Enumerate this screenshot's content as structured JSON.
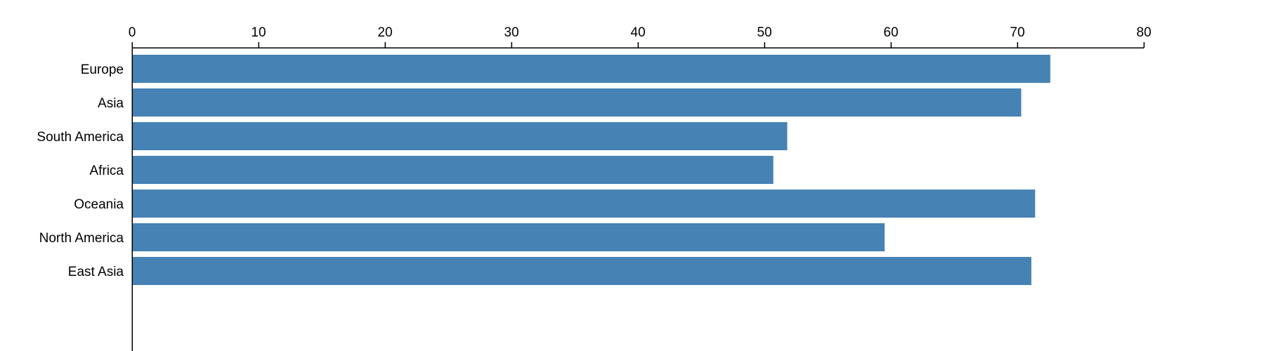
{
  "chart_data": {
    "type": "bar",
    "orientation": "horizontal",
    "categories": [
      "Europe",
      "Asia",
      "South America",
      "Africa",
      "Oceania",
      "North America",
      "East Asia"
    ],
    "values": [
      72.6,
      70.3,
      51.8,
      50.7,
      71.4,
      59.5,
      71.1
    ],
    "xlim": [
      0,
      80
    ],
    "xticks": [
      0,
      10,
      20,
      30,
      40,
      50,
      60,
      70,
      80
    ],
    "x_axis_position": "top",
    "grid": false,
    "legend": "none",
    "bar_color": "#4682b4",
    "title": "",
    "xlabel": "",
    "ylabel": ""
  }
}
